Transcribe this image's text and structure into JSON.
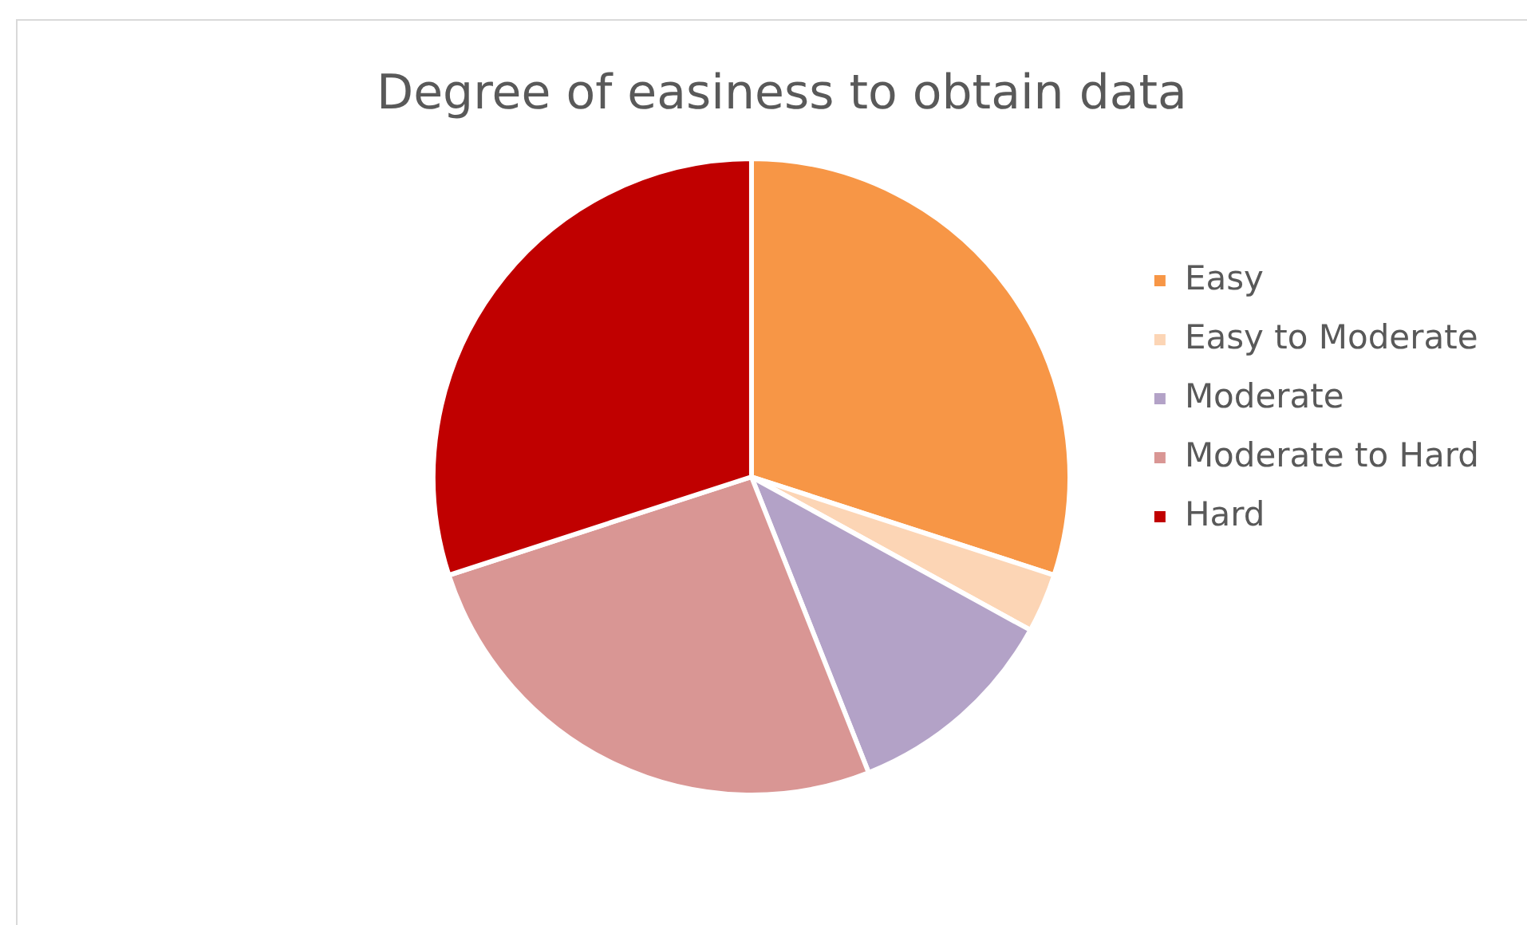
{
  "chart_data": {
    "type": "pie",
    "title": "Degree of easiness to obtain data",
    "categories": [
      "Easy",
      "Easy to Moderate",
      "Moderate",
      "Moderate to Hard",
      "Hard"
    ],
    "values": [
      30,
      3,
      11,
      26,
      30
    ],
    "colors": [
      "#f79646",
      "#fcd5b5",
      "#b3a2c7",
      "#d99694",
      "#c00000"
    ],
    "legend": "right"
  }
}
